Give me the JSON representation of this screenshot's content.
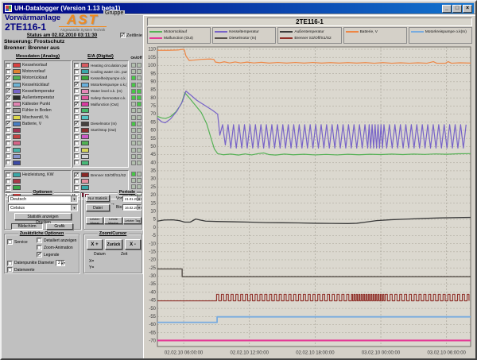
{
  "window": {
    "title": "UH-Datalogger (Version 1.13 beta1)",
    "minimize": "_",
    "maximize": "□",
    "close": "×"
  },
  "header": {
    "plant_line1": "Vorwärmanlage",
    "plant_line2": "2TE116-1",
    "logo_text": "AST",
    "logo_sub": "Angewandte System Technik",
    "gruppe_label": "Gruppe"
  },
  "status": {
    "line": "Status am 02.02.2010  03:11:30",
    "zeitlinie_label": "Zeitlinie",
    "zeitlinie_checked": true,
    "steuerung": "Steuerung:  Frostschutz",
    "brenner": "Brenner:      Brenner aus"
  },
  "analog": {
    "header": "Messdaten (Analog)",
    "items": [
      {
        "label": "Kesselvorlauf",
        "color": "#d94040",
        "checked": false
      },
      {
        "label": "Motorvorlauf",
        "color": "#e08430",
        "checked": false
      },
      {
        "label": "Motorrücklauf",
        "color": "#55b155",
        "checked": true
      },
      {
        "label": "Kesselrücklauf",
        "color": "#6fb4d4",
        "checked": false
      },
      {
        "label": "Kesseltemperatur",
        "color": "#7763c8",
        "checked": true
      },
      {
        "label": "Außentemperatur",
        "color": "#2a2a2a",
        "checked": true
      },
      {
        "label": "Kältester Punkt",
        "color": "#e386b4",
        "checked": false
      },
      {
        "label": "Fühler in Boden",
        "color": "#989898",
        "checked": false
      },
      {
        "label": "Mischventil, %",
        "color": "#ddd84a",
        "checked": false
      },
      {
        "label": "Batterie, V",
        "color": "#4a7ec2",
        "checked": true
      },
      {
        "label": "",
        "color": "#a03454",
        "checked": false
      },
      {
        "label": "",
        "color": "#c24444",
        "checked": false
      },
      {
        "label": "",
        "color": "#d46688",
        "checked": false
      },
      {
        "label": "",
        "color": "#46b2a8",
        "checked": false
      },
      {
        "label": "",
        "color": "#8694cc",
        "checked": false
      },
      {
        "label": "",
        "color": "#3c4aa4",
        "checked": false
      }
    ],
    "items2": [
      {
        "label": "Heizleistung, KW",
        "color": "#3aa8a8",
        "checked": false
      },
      {
        "label": "",
        "color": "#a83a4a",
        "checked": false
      },
      {
        "label": "",
        "color": "#3aa84a",
        "checked": false
      },
      {
        "label": "",
        "color": "#c23a3a",
        "checked": false
      }
    ]
  },
  "digital": {
    "header": "E/A (Digital)",
    "onoff_header": "On/Off",
    "items": [
      {
        "label": "Heating circulation pump (Out)",
        "color": "#d85a60",
        "checked": false,
        "onoff": [
          "dim",
          "dim"
        ]
      },
      {
        "label": "Cooling water circ. pump (Out)",
        "color": "#3aa8a8",
        "checked": false,
        "onoff": [
          "dim",
          "dim"
        ]
      },
      {
        "label": "Kesselheizpumpe o.k. (In)",
        "color": "#3aa83a",
        "checked": false,
        "onoff": [
          "on",
          "dim"
        ]
      },
      {
        "label": "Motorkreispumpe o.k.(In)",
        "color": "#68b0dc",
        "checked": true,
        "onoff": [
          "on",
          "dim"
        ]
      },
      {
        "label": "Water level o.k. (In)",
        "color": "#e68ab8",
        "checked": false,
        "onoff": [
          "on",
          "on"
        ]
      },
      {
        "label": "Safety thermostat o.k. (In)",
        "color": "#e25aa0",
        "checked": false,
        "onoff": [
          "on",
          "on"
        ]
      },
      {
        "label": "Malfunction (Out)",
        "color": "#d83aa0",
        "checked": true,
        "onoff": [
          "dim",
          "on"
        ]
      },
      {
        "label": "",
        "color": "#46b868",
        "checked": false,
        "onoff": [
          "dim",
          "dim"
        ]
      },
      {
        "label": "",
        "color": "#56c4c4",
        "checked": false,
        "onoff": [
          "dim",
          "dim"
        ]
      },
      {
        "label": "Dieselmotor (In)",
        "color": "#474340",
        "checked": true,
        "onoff": [
          "on",
          "dim"
        ]
      },
      {
        "label": "Start/Stop (Out)",
        "color": "#8a3030",
        "checked": false,
        "onoff": [
          "dim",
          "dim"
        ]
      },
      {
        "label": "",
        "color": "#cc5ac8",
        "checked": false,
        "onoff": [
          "dim",
          "dim"
        ]
      },
      {
        "label": "",
        "color": "#52b152",
        "checked": false,
        "onoff": [
          "dim",
          "dim"
        ]
      },
      {
        "label": "",
        "color": "#d6d45a",
        "checked": false,
        "onoff": [
          "dim",
          "dim"
        ]
      },
      {
        "label": "",
        "color": "#d2d2d2",
        "checked": false,
        "onoff": [
          "dim",
          "dim"
        ]
      },
      {
        "label": "",
        "color": "#48b878",
        "checked": false,
        "onoff": [
          "dim",
          "dim"
        ]
      }
    ],
    "items2": [
      {
        "label": "Brenner S3/Off/S1/S2",
        "color": "#8a2826",
        "checked": true,
        "onoff": [
          "on",
          "dim"
        ]
      },
      {
        "label": "",
        "color": "#e890a0",
        "checked": false,
        "onoff": [
          "dim",
          "dim"
        ]
      },
      {
        "label": "",
        "color": "#3aa8a8",
        "checked": false,
        "onoff": [
          "dim",
          "dim"
        ]
      },
      {
        "label": "",
        "color": "#7a1830",
        "checked": false,
        "onoff": [
          "dim",
          "dim"
        ]
      }
    ]
  },
  "options": {
    "title": "Optionen",
    "language": "Deutsch",
    "unit": "Celsius",
    "statistik": "Statistik anzeigen",
    "drucken": "Drucken",
    "bildschirm": "Bildschirm",
    "grafik": "Grafik"
  },
  "periode": {
    "title": "Periode",
    "nur_statistik": "Nur Statistik",
    "datei": "Datei",
    "arrow": "→",
    "von_label": "Von:",
    "von_value": "21.01.2010",
    "bis_label": "Bis:",
    "bis_value": "16.02.2010",
    "letzter_monat": "Letzter Monat",
    "letzte_woche": "Letzte Woche",
    "letzter_tag": "Letzter Tag"
  },
  "zusatz": {
    "title": "Zusätzliche Optionen",
    "service": "Service",
    "detail": "Detailiert anzeigen",
    "zoom_anim": "Zoom-Animation",
    "legende": "Legende",
    "legende_checked": true,
    "datenpunkte": "Datenpunkte Diameter",
    "diameter": "2",
    "datenwerte": "Datenwerte"
  },
  "zoomcursor": {
    "title": "Zoom/Cursor",
    "xplus": "X +",
    "zurueck": "Zurück",
    "xminus": "X -",
    "datum": "Datum",
    "zeit": "Zeit",
    "xeq": "X=",
    "yeq": "Y="
  },
  "chart_data": {
    "type": "line",
    "title": "2TE116-1",
    "background": "#dbd8cf",
    "grid": true,
    "x_axis": {
      "xlim": [
        3.6,
        32.2
      ],
      "tick_hours": [
        6,
        12,
        18,
        24,
        30
      ],
      "tick_labels": [
        "02.02.10 06:00:00",
        "02.02.10 12:00:00",
        "02.02.10 18:00:00",
        "03.02.10 00:00:00",
        "03.02.10 06:00:00"
      ]
    },
    "y_axis": {
      "ylim": [
        -73.5,
        111.5
      ],
      "tick_min": -70,
      "tick_max": 110,
      "tick_step": 5
    },
    "legend": [
      [
        {
          "label": "Motorrücklauf",
          "color": "#55b155"
        },
        {
          "label": "Malfunction (Out)",
          "color": "#e43a96"
        }
      ],
      [
        {
          "label": "Kesseltemperatur",
          "color": "#7763c8"
        },
        {
          "label": "Dieselmotor (In)",
          "color": "#57504a"
        }
      ],
      [
        {
          "label": "Außentemperatur",
          "color": "#3a3a3a"
        },
        {
          "label": "Brenner S3/Off/S1/S2",
          "color": "#8f2f28"
        }
      ],
      [
        {
          "label": "Batterie, V",
          "color": "#ee8644"
        }
      ],
      [
        {
          "label": "Motorkreispumpe o.k(In)",
          "color": "#78abdf"
        }
      ]
    ],
    "series": [
      {
        "name": "Batterie, V",
        "color": "#ee8644",
        "width": 1.2,
        "points": [
          [
            3.6,
            109.4
          ],
          [
            4.6,
            109.4
          ],
          [
            5.5,
            109.6
          ],
          [
            5.9,
            110.0
          ],
          [
            6.05,
            109.8
          ],
          [
            6.2,
            106.0
          ],
          [
            6.5,
            103.1
          ],
          [
            6.9,
            103.3
          ],
          [
            7.6,
            103.8
          ],
          [
            8.4,
            104.0
          ],
          [
            8.75,
            103.8
          ],
          [
            8.9,
            102.1
          ],
          [
            9.3,
            101.7
          ],
          [
            9.7,
            102.3
          ],
          [
            10.2,
            101.6
          ],
          [
            10.7,
            102.2
          ],
          [
            11.2,
            101.6
          ],
          [
            11.8,
            102.1
          ],
          [
            12.4,
            101.6
          ],
          [
            13.1,
            102.0
          ],
          [
            13.8,
            101.5
          ],
          [
            14.6,
            101.9
          ],
          [
            15.4,
            101.5
          ],
          [
            16.2,
            101.9
          ],
          [
            17.0,
            101.5
          ],
          [
            17.8,
            101.9
          ],
          [
            18.6,
            101.5
          ],
          [
            19.4,
            101.8
          ],
          [
            20.2,
            101.5
          ],
          [
            21.0,
            101.8
          ],
          [
            21.8,
            101.5
          ],
          [
            22.6,
            101.8
          ],
          [
            23.4,
            101.4
          ],
          [
            24.2,
            101.8
          ],
          [
            25.0,
            101.4
          ],
          [
            25.8,
            101.7
          ],
          [
            26.6,
            101.4
          ],
          [
            27.4,
            101.7
          ],
          [
            28.2,
            101.4
          ],
          [
            28.8,
            102.4
          ],
          [
            29.1,
            101.4
          ],
          [
            29.9,
            101.4
          ],
          [
            30.15,
            102.4
          ],
          [
            30.45,
            101.4
          ],
          [
            31.2,
            101.7
          ],
          [
            32.2,
            101.5
          ]
        ]
      },
      {
        "name": "Motorrücklauf",
        "color": "#55b155",
        "width": 1.2,
        "points": [
          [
            3.6,
            68.6
          ],
          [
            4.0,
            67.6
          ],
          [
            4.35,
            67.3
          ],
          [
            4.8,
            68.5
          ],
          [
            5.3,
            71.5
          ],
          [
            5.8,
            76.5
          ],
          [
            6.1,
            83.2
          ],
          [
            6.45,
            80.5
          ],
          [
            7.0,
            76.0
          ],
          [
            7.6,
            71.0
          ],
          [
            8.1,
            64.0
          ],
          [
            8.5,
            55.0
          ],
          [
            8.8,
            48.5
          ],
          [
            9.1,
            45.6
          ],
          [
            9.6,
            44.9
          ],
          [
            10.3,
            45.3
          ],
          [
            11.0,
            44.7
          ],
          [
            11.6,
            45.4
          ],
          [
            12.2,
            44.8
          ],
          [
            12.8,
            45.6
          ],
          [
            13.3,
            46.0
          ],
          [
            13.8,
            45.0
          ],
          [
            14.4,
            44.7
          ],
          [
            15.2,
            45.3
          ],
          [
            16.0,
            44.9
          ],
          [
            17.0,
            45.2
          ],
          [
            18.0,
            44.8
          ],
          [
            19.0,
            45.1
          ],
          [
            20.0,
            44.8
          ],
          [
            21.0,
            45.2
          ],
          [
            22.0,
            44.9
          ],
          [
            23.0,
            45.2
          ],
          [
            24.0,
            45.0
          ],
          [
            25.0,
            45.3
          ],
          [
            26.0,
            45.0
          ],
          [
            27.0,
            45.3
          ],
          [
            28.0,
            45.1
          ],
          [
            29.0,
            45.4
          ],
          [
            30.0,
            45.2
          ],
          [
            31.0,
            45.5
          ],
          [
            32.2,
            45.6
          ]
        ]
      },
      {
        "name": "Außentemperatur",
        "color": "#3a3a3a",
        "width": 1.3,
        "points": [
          [
            3.6,
            3.9
          ],
          [
            4.2,
            4.6
          ],
          [
            5.0,
            4.7
          ],
          [
            5.6,
            4.2
          ],
          [
            6.1,
            3.3
          ],
          [
            6.6,
            3.3
          ],
          [
            7.1,
            5.2
          ],
          [
            7.5,
            4.6
          ],
          [
            8.0,
            3.9
          ],
          [
            9.0,
            3.7
          ],
          [
            10.5,
            3.5
          ],
          [
            12.0,
            3.3
          ],
          [
            13.5,
            3.0
          ],
          [
            15.0,
            2.9
          ],
          [
            16.5,
            2.8
          ],
          [
            18.0,
            2.6
          ],
          [
            19.5,
            2.5
          ],
          [
            21.0,
            2.4
          ],
          [
            21.8,
            2.6
          ],
          [
            22.6,
            3.3
          ],
          [
            23.6,
            4.2
          ],
          [
            25.0,
            4.8
          ],
          [
            26.5,
            5.2
          ],
          [
            28.0,
            5.6
          ],
          [
            29.5,
            5.9
          ],
          [
            31.0,
            6.1
          ],
          [
            32.2,
            6.2
          ]
        ]
      },
      {
        "name": "Kesseltemperatur",
        "color": "#7763c8",
        "width": 1.2,
        "points": [
          [
            3.6,
            67.4
          ],
          [
            4.0,
            65.2
          ],
          [
            4.3,
            64.6
          ],
          [
            4.8,
            67.0
          ],
          [
            5.4,
            72.0
          ],
          [
            5.9,
            78.0
          ],
          [
            6.2,
            84.2
          ],
          [
            6.6,
            82.0
          ],
          [
            7.2,
            78.5
          ],
          [
            7.9,
            75.5
          ],
          [
            8.6,
            72.5
          ],
          [
            9.1,
            70.0
          ]
        ],
        "osc": {
          "start": 9.3,
          "end": 31.9,
          "low": 49.0,
          "high": 63.5,
          "period": 0.5,
          "dense": [
            {
              "from": 22.6,
              "to": 24.2,
              "period": 0.27
            }
          ]
        }
      },
      {
        "name": "Dieselmotor (In)",
        "color": "#57504a",
        "width": 1.4,
        "points": [
          [
            3.6,
            -25.6
          ],
          [
            5.86,
            -25.6
          ],
          [
            5.86,
            -30.4
          ],
          [
            32.2,
            -30.4
          ]
        ]
      },
      {
        "name": "Brenner S3/Off/S1/S2",
        "color": "#8f2f28",
        "width": 1.1,
        "points": [
          [
            3.6,
            -45.3
          ],
          [
            9.0,
            -45.3
          ]
        ],
        "pulse": {
          "start": 9.0,
          "end": 32.05,
          "low": -45.3,
          "high": -41.3,
          "period": 0.44,
          "duty": 0.45,
          "dense": [
            {
              "from": 21.2,
              "to": 24.3,
              "period": 0.22
            }
          ]
        }
      },
      {
        "name": "Motorkreispumpe o.k(In)",
        "color": "#78abdf",
        "width": 1.8,
        "points": [
          [
            3.6,
            -58.6
          ],
          [
            9.05,
            -58.6
          ],
          [
            9.05,
            -55.2
          ],
          [
            32.2,
            -55.2
          ]
        ]
      },
      {
        "name": "Malfunction (Out)",
        "color": "#e43a96",
        "width": 2.2,
        "points": [
          [
            3.6,
            -69.8
          ],
          [
            32.2,
            -69.8
          ]
        ]
      }
    ]
  }
}
